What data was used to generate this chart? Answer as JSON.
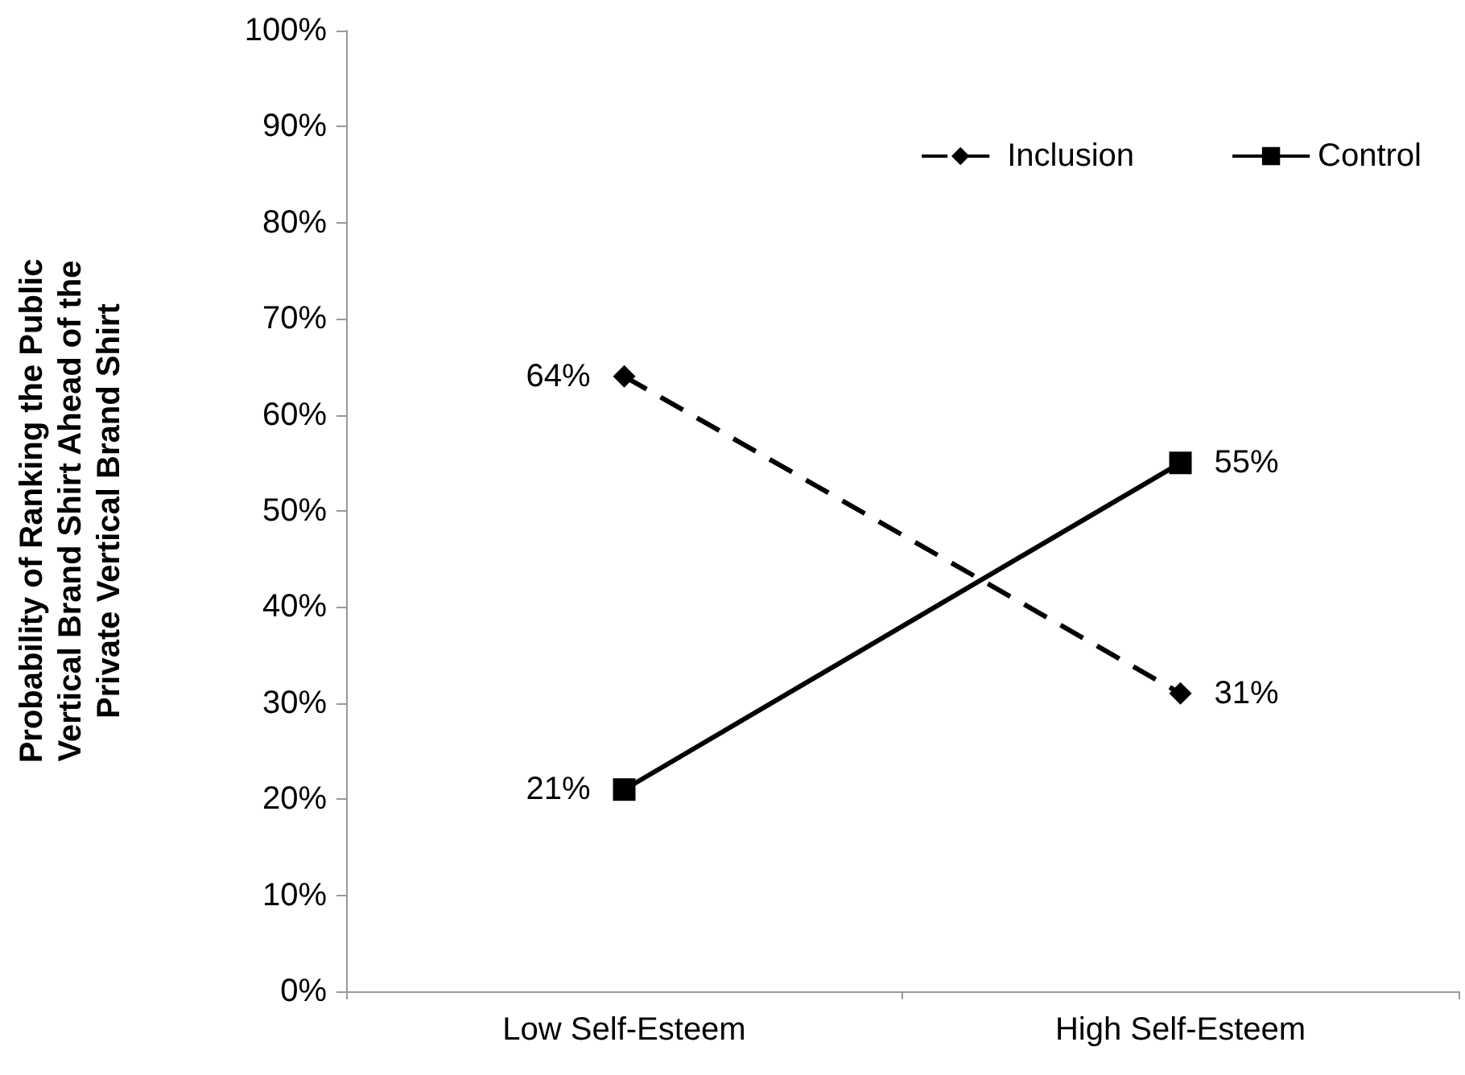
{
  "chart_data": {
    "type": "line",
    "ylabel": "Probability of Ranking the Public\nVertical Brand Shirt Ahead of the\nPrivate Vertical Brand Shirt",
    "categories": [
      "Low Self-Esteem",
      "High Self-Esteem"
    ],
    "series": [
      {
        "name": "Inclusion",
        "color": "#000000",
        "values": [
          64,
          31
        ],
        "value_labels": [
          "64%",
          "31%"
        ],
        "marker": "diamond",
        "line_style": "dashed"
      },
      {
        "name": "Control",
        "color": "#000000",
        "values": [
          21,
          55
        ],
        "value_labels": [
          "21%",
          "55%"
        ],
        "marker": "square",
        "line_style": "solid"
      }
    ],
    "ylim": [
      0,
      100
    ],
    "yticks": [
      {
        "value": 0,
        "label": "0%"
      },
      {
        "value": 10,
        "label": "10%"
      },
      {
        "value": 20,
        "label": "20%"
      },
      {
        "value": 30,
        "label": "30%"
      },
      {
        "value": 40,
        "label": "40%"
      },
      {
        "value": 50,
        "label": "50%"
      },
      {
        "value": 60,
        "label": "60%"
      },
      {
        "value": 70,
        "label": "70%"
      },
      {
        "value": 80,
        "label": "80%"
      },
      {
        "value": 90,
        "label": "90%"
      },
      {
        "value": 100,
        "label": "100%"
      }
    ],
    "grid": false,
    "legend": "top right"
  }
}
